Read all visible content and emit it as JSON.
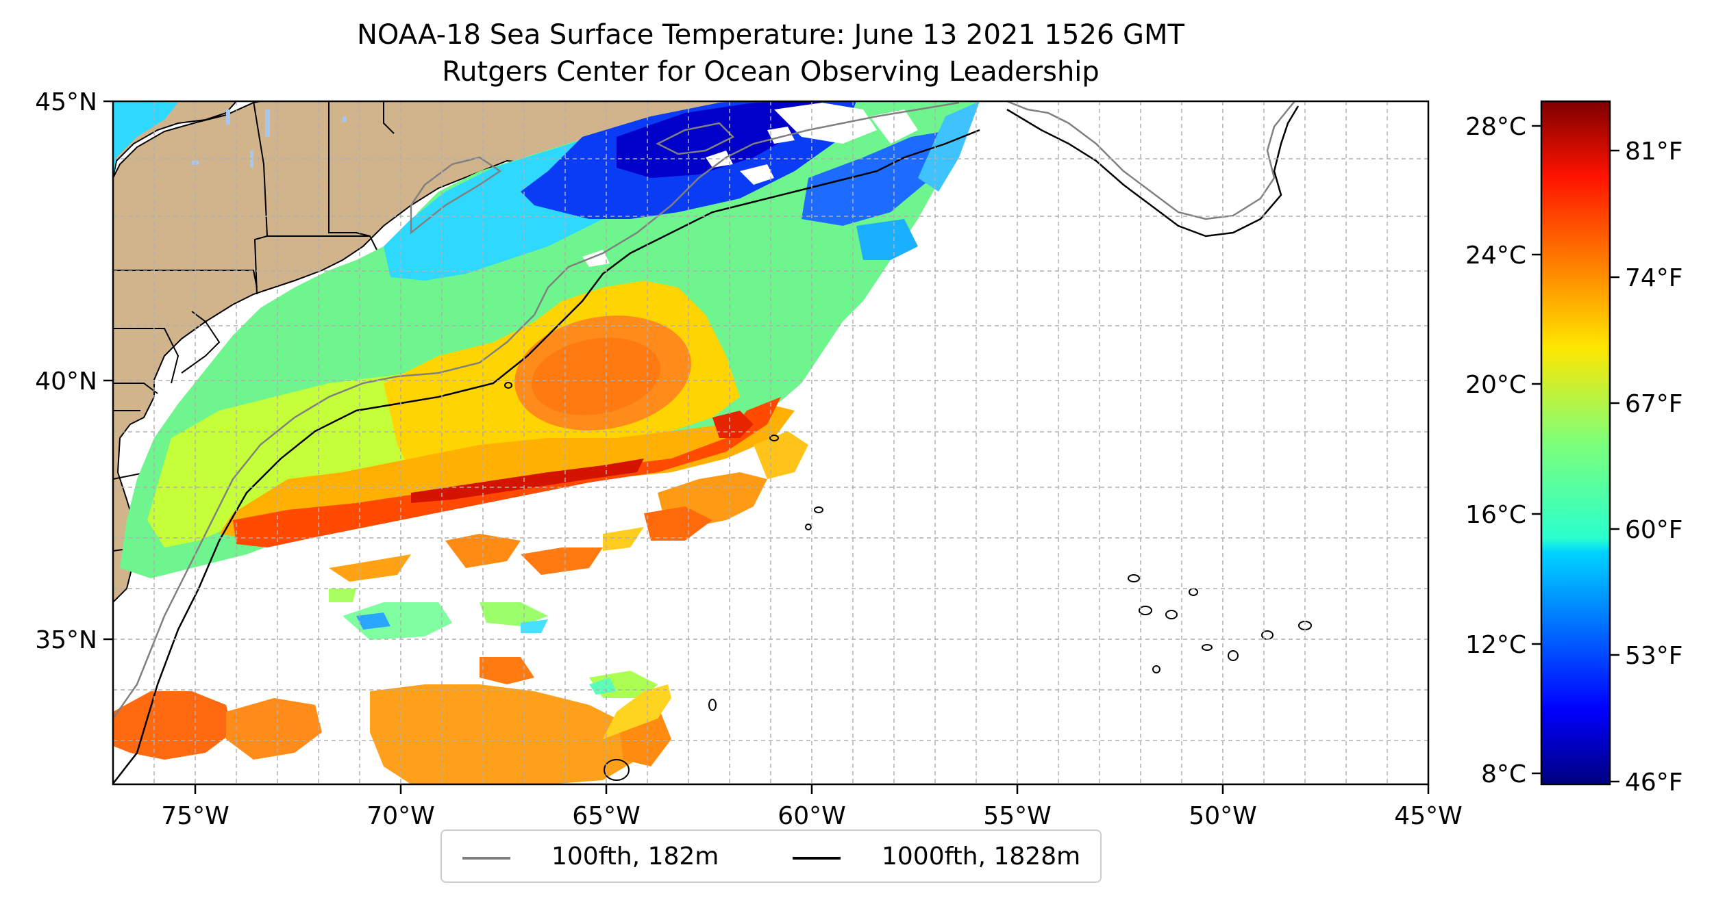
{
  "title": {
    "line1": "NOAA-18 Sea Surface Temperature: June 13 2021 1526 GMT",
    "line2": "Rutgers Center for Ocean Observing Leadership"
  },
  "map": {
    "lon_range": [
      -77,
      -45
    ],
    "lat_range": [
      31.7,
      45
    ],
    "lon_tick_labels": [
      "75°W",
      "70°W",
      "65°W",
      "60°W",
      "55°W",
      "50°W",
      "45°W"
    ],
    "lat_tick_labels": [
      "35°N",
      "40°N",
      "45°N"
    ],
    "gridlines": true,
    "land_color": "#d2b48c",
    "lake_color": "#a6c8ee"
  },
  "legend": {
    "placement": "bottom-center",
    "items": [
      {
        "label": "100fth, 182m",
        "color": "#808080"
      },
      {
        "label": "1000fth, 1828m",
        "color": "#000000"
      }
    ]
  },
  "colorbar": {
    "colormap": "jet",
    "range_celsius": [
      7.8,
      28.8
    ],
    "celsius_labels": [
      "28°C",
      "24°C",
      "20°C",
      "16°C",
      "12°C",
      "8°C"
    ],
    "celsius_values": [
      28,
      24,
      20,
      16,
      12,
      8
    ],
    "fahrenheit_labels": [
      "81°F",
      "74°F",
      "67°F",
      "60°F",
      "53°F",
      "46°F"
    ],
    "fahrenheit_values": [
      81,
      74,
      67,
      60,
      53,
      46
    ]
  }
}
